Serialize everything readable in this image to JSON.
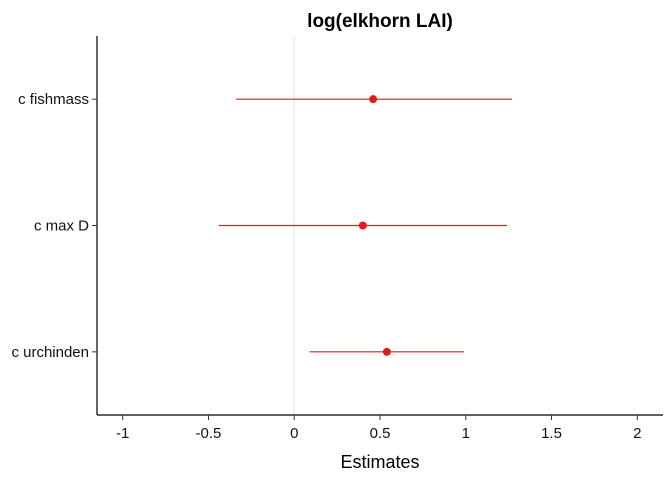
{
  "chart_data": {
    "type": "forest",
    "title": "log(elkhorn LAI)",
    "xlabel": "Estimates",
    "ylabel": "",
    "xlim": [
      -1.15,
      2.15
    ],
    "xticks": [
      -1,
      -0.5,
      0,
      0.5,
      1,
      1.5,
      2
    ],
    "xtick_labels": [
      "-1",
      "-0.5",
      "0",
      "0.5",
      "1",
      "1.5",
      "2"
    ],
    "reference_line": 0,
    "grid": false,
    "legend": "none",
    "color": "#e41a1c",
    "terms": [
      {
        "label": "c fishmass",
        "estimate": 0.46,
        "low": -0.34,
        "high": 1.27
      },
      {
        "label": "c max D",
        "estimate": 0.4,
        "low": -0.44,
        "high": 1.24
      },
      {
        "label": "c urchinden",
        "estimate": 0.54,
        "low": 0.09,
        "high": 0.99
      }
    ]
  }
}
